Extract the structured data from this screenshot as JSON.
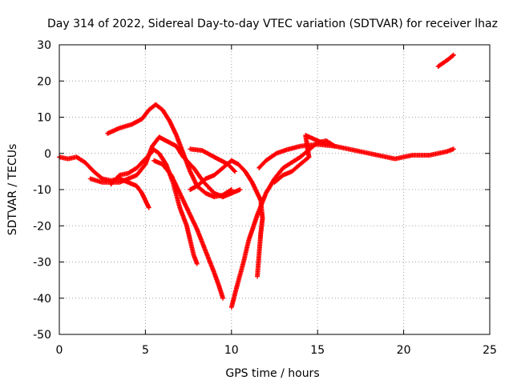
{
  "chart_data": {
    "type": "scatter",
    "title": "Day 314 of 2022, Sidereal Day-to-day VTEC variation (SDTVAR) for receiver lhaz",
    "xlabel": "GPS time / hours",
    "ylabel": "SDTVAR / TECUs",
    "xlim": [
      0,
      25
    ],
    "ylim": [
      -50,
      30
    ],
    "xticks": [
      "0",
      "5",
      "10",
      "15",
      "20",
      "25"
    ],
    "yticks": [
      "-50",
      "-40",
      "-30",
      "-20",
      "-10",
      "0",
      "10",
      "20",
      "30"
    ],
    "grid": true,
    "marker": "+",
    "color": "#ff0000",
    "series": [
      {
        "name": "track-1",
        "points": [
          [
            0,
            -1
          ],
          [
            0.5,
            -1.5
          ],
          [
            1,
            -1
          ],
          [
            1.5,
            -2.5
          ],
          [
            2,
            -5
          ],
          [
            2.5,
            -7
          ],
          [
            3,
            -7.5
          ],
          [
            3.5,
            -7
          ],
          [
            4,
            -8
          ],
          [
            4.5,
            -9
          ],
          [
            4.8,
            -11
          ],
          [
            5,
            -13
          ],
          [
            5.2,
            -15
          ]
        ]
      },
      {
        "name": "track-2",
        "points": [
          [
            2.8,
            5.5
          ],
          [
            3.5,
            7
          ],
          [
            4.2,
            8
          ],
          [
            4.8,
            9.5
          ],
          [
            5.2,
            12
          ],
          [
            5.6,
            13.5
          ],
          [
            6,
            12
          ],
          [
            6.4,
            9
          ],
          [
            6.8,
            5
          ],
          [
            7.2,
            0
          ],
          [
            7.6,
            -5
          ],
          [
            8,
            -9
          ],
          [
            8.5,
            -11
          ],
          [
            9,
            -12
          ],
          [
            9.5,
            -11.5
          ],
          [
            10,
            -10
          ]
        ]
      },
      {
        "name": "track-3",
        "points": [
          [
            1.8,
            -7
          ],
          [
            2.5,
            -8
          ],
          [
            3.5,
            -8
          ],
          [
            4.5,
            -6
          ],
          [
            5,
            -3
          ],
          [
            5.4,
            2
          ],
          [
            5.8,
            4.5
          ],
          [
            6.2,
            3.5
          ],
          [
            6.8,
            2
          ],
          [
            7.2,
            -1
          ],
          [
            7.8,
            -4
          ],
          [
            8.4,
            -8
          ],
          [
            9,
            -11
          ],
          [
            9.5,
            -12
          ],
          [
            10,
            -11
          ],
          [
            10.5,
            -10
          ]
        ]
      },
      {
        "name": "track-4",
        "points": [
          [
            3,
            -8.5
          ],
          [
            3.5,
            -6
          ],
          [
            4,
            -5.5
          ],
          [
            4.5,
            -4
          ],
          [
            5,
            -1.5
          ],
          [
            5.5,
            1
          ],
          [
            5.8,
            0
          ],
          [
            6.2,
            -3
          ],
          [
            6.6,
            -8
          ],
          [
            7,
            -15
          ],
          [
            7.4,
            -20
          ],
          [
            7.6,
            -24
          ],
          [
            7.8,
            -28
          ],
          [
            8,
            -30.5
          ]
        ]
      },
      {
        "name": "track-5",
        "points": [
          [
            5.5,
            -2
          ],
          [
            6,
            -3
          ],
          [
            6.5,
            -6
          ],
          [
            7,
            -11
          ],
          [
            7.5,
            -16
          ],
          [
            8,
            -21
          ],
          [
            8.5,
            -27
          ],
          [
            9,
            -33
          ],
          [
            9.3,
            -37
          ],
          [
            9.5,
            -40
          ]
        ]
      },
      {
        "name": "track-6",
        "points": [
          [
            7.6,
            -10
          ],
          [
            8,
            -9
          ],
          [
            8.5,
            -7
          ],
          [
            9,
            -6
          ],
          [
            9.5,
            -4
          ],
          [
            10,
            -2
          ],
          [
            10.4,
            -3
          ],
          [
            10.8,
            -5
          ],
          [
            11.2,
            -8
          ],
          [
            11.5,
            -11
          ],
          [
            11.7,
            -13
          ],
          [
            11.8,
            -18
          ],
          [
            11.7,
            -22
          ],
          [
            11.6,
            -28
          ],
          [
            11.5,
            -34
          ]
        ]
      },
      {
        "name": "track-7",
        "points": [
          [
            10,
            -42.5
          ],
          [
            10.3,
            -37
          ],
          [
            10.7,
            -30
          ],
          [
            11,
            -24
          ],
          [
            11.5,
            -17
          ],
          [
            12,
            -11
          ],
          [
            12.5,
            -7
          ],
          [
            13,
            -4
          ],
          [
            13.5,
            -2.5
          ],
          [
            14,
            -1
          ],
          [
            14.5,
            1
          ],
          [
            15,
            3
          ],
          [
            15.5,
            3.5
          ],
          [
            16,
            2
          ]
        ]
      },
      {
        "name": "track-8",
        "points": [
          [
            12.5,
            -8
          ],
          [
            13,
            -6
          ],
          [
            13.5,
            -5
          ],
          [
            14,
            -3
          ],
          [
            14.5,
            -1
          ],
          [
            14.3,
            5
          ],
          [
            15,
            3.5
          ],
          [
            15.5,
            2.5
          ]
        ]
      },
      {
        "name": "track-9",
        "points": [
          [
            7.6,
            1.2
          ],
          [
            8.3,
            0.8
          ],
          [
            9,
            -1
          ],
          [
            9.8,
            -3
          ],
          [
            10.2,
            -5
          ]
        ]
      },
      {
        "name": "track-10",
        "points": [
          [
            11.6,
            -4
          ],
          [
            12,
            -2
          ],
          [
            12.6,
            0
          ],
          [
            13.2,
            1
          ],
          [
            14,
            2
          ],
          [
            15,
            2.5
          ],
          [
            16,
            2
          ],
          [
            17,
            1
          ],
          [
            18,
            0
          ],
          [
            19,
            -1
          ],
          [
            19.5,
            -1.5
          ],
          [
            20,
            -1
          ],
          [
            20.5,
            -0.5
          ],
          [
            21,
            -0.5
          ],
          [
            21.5,
            -0.5
          ],
          [
            22,
            0
          ],
          [
            22.5,
            0.5
          ],
          [
            22.9,
            1.2
          ]
        ]
      },
      {
        "name": "track-11",
        "points": [
          [
            22,
            24
          ],
          [
            22.3,
            25
          ],
          [
            22.6,
            26
          ],
          [
            22.9,
            27.2
          ]
        ]
      }
    ]
  }
}
